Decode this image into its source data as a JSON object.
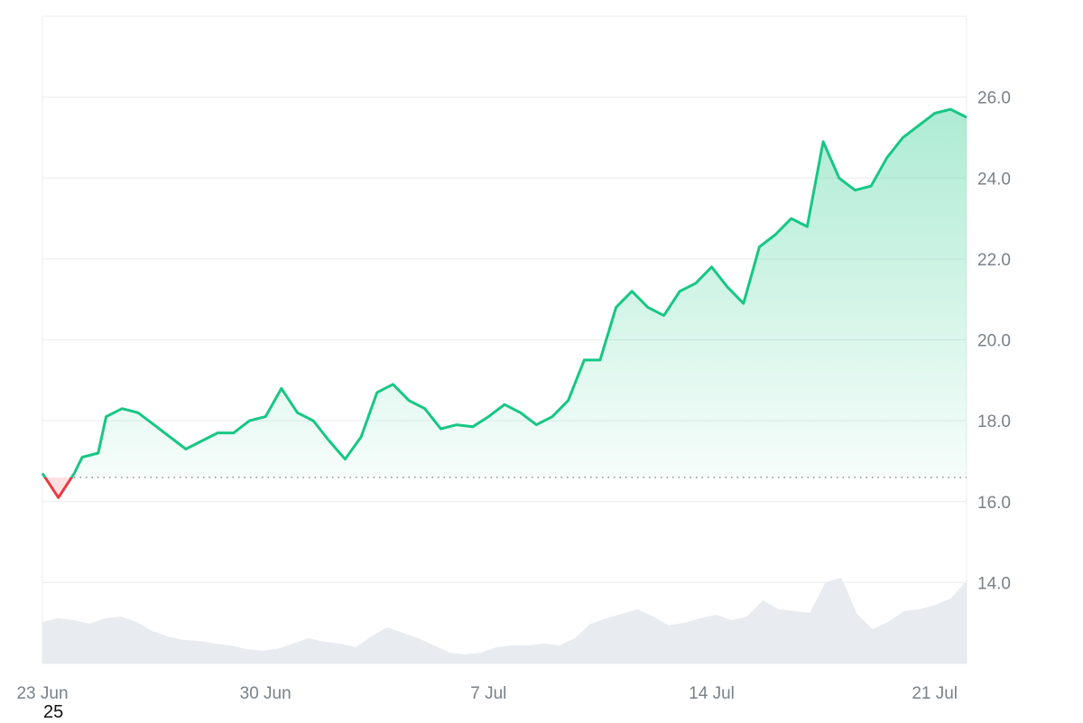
{
  "chart_data": {
    "type": "area",
    "title": "",
    "xlabel": "",
    "ylabel": "",
    "x_ticks": [
      "23 Jun",
      "30 Jun",
      "7 Jul",
      "14 Jul",
      "21 Jul"
    ],
    "y_ticks": [
      "14.0",
      "16.0",
      "18.0",
      "20.0",
      "22.0",
      "24.0",
      "26.0"
    ],
    "ylim": [
      12.0,
      28.0
    ],
    "x_range": [
      "2025-06-23",
      "2025-07-22"
    ],
    "reference_line": 16.6,
    "grid": true,
    "legend": "none",
    "series": [
      {
        "x": [
          "2025-06-23",
          "2025-06-23T12:00",
          "2025-06-24",
          "2025-06-24T06:00",
          "2025-06-24T18:00",
          "2025-06-25",
          "2025-06-25T12:00",
          "2025-06-26",
          "2025-06-26T12:00",
          "2025-06-27",
          "2025-06-27T12:00",
          "2025-06-28",
          "2025-06-28T12:00",
          "2025-06-29",
          "2025-06-29T12:00",
          "2025-06-30",
          "2025-06-30T12:00",
          "2025-07-01",
          "2025-07-01T12:00",
          "2025-07-02",
          "2025-07-02T12:00",
          "2025-07-03",
          "2025-07-03T12:00",
          "2025-07-04",
          "2025-07-04T12:00",
          "2025-07-05",
          "2025-07-05T12:00",
          "2025-07-06",
          "2025-07-06T12:00",
          "2025-07-07",
          "2025-07-07T12:00",
          "2025-07-08",
          "2025-07-08T12:00",
          "2025-07-09",
          "2025-07-09T12:00",
          "2025-07-10",
          "2025-07-10T12:00",
          "2025-07-11",
          "2025-07-11T12:00",
          "2025-07-12",
          "2025-07-12T12:00",
          "2025-07-13",
          "2025-07-13T12:00",
          "2025-07-14",
          "2025-07-14T12:00",
          "2025-07-15",
          "2025-07-15T12:00",
          "2025-07-16",
          "2025-07-16T12:00",
          "2025-07-17",
          "2025-07-17T12:00",
          "2025-07-18",
          "2025-07-18T12:00",
          "2025-07-19",
          "2025-07-19T12:00",
          "2025-07-20",
          "2025-07-20T12:00",
          "2025-07-21",
          "2025-07-21T12:00",
          "2025-07-22"
        ],
        "values": [
          16.7,
          16.1,
          16.7,
          17.1,
          17.2,
          18.1,
          18.3,
          18.2,
          17.9,
          17.6,
          17.3,
          17.5,
          17.7,
          17.7,
          18.0,
          18.1,
          18.8,
          18.2,
          18.0,
          17.5,
          17.05,
          17.6,
          18.7,
          18.9,
          18.5,
          18.3,
          17.8,
          17.9,
          17.85,
          18.1,
          18.4,
          18.2,
          17.9,
          18.1,
          18.5,
          19.5,
          19.5,
          20.8,
          21.2,
          20.8,
          20.6,
          21.2,
          21.4,
          21.8,
          21.3,
          20.9,
          22.3,
          22.6,
          23.0,
          22.8,
          24.9,
          24.0,
          23.7,
          23.8,
          24.5,
          25.0,
          25.3,
          25.6,
          25.7,
          25.5
        ]
      }
    ],
    "volume": [
      0.46,
      0.5,
      0.48,
      0.44,
      0.5,
      0.52,
      0.46,
      0.36,
      0.3,
      0.26,
      0.25,
      0.22,
      0.2,
      0.16,
      0.14,
      0.16,
      0.22,
      0.28,
      0.24,
      0.22,
      0.18,
      0.3,
      0.4,
      0.34,
      0.28,
      0.2,
      0.12,
      0.1,
      0.12,
      0.18,
      0.2,
      0.2,
      0.22,
      0.2,
      0.28,
      0.44,
      0.5,
      0.55,
      0.6,
      0.52,
      0.42,
      0.45,
      0.5,
      0.54,
      0.48,
      0.52,
      0.7,
      0.6,
      0.58,
      0.56,
      0.9,
      0.95,
      0.55,
      0.38,
      0.46,
      0.58,
      0.6,
      0.65,
      0.72,
      0.92
    ],
    "colors": {
      "up_line": "#16c784",
      "down_line": "#ea3943",
      "up_fill": "#16c784",
      "volume": "#e8ebef",
      "grid": "#e9ecef",
      "reference": "#8a9099"
    }
  },
  "footer": {
    "stray_label": "25"
  }
}
